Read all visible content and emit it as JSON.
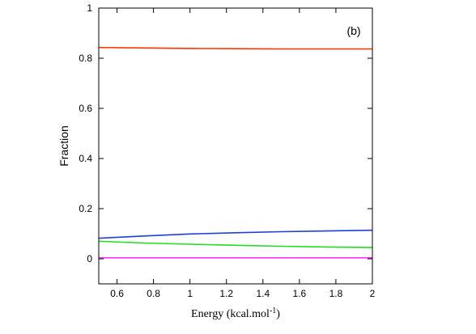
{
  "chart_data": {
    "type": "line",
    "annotation": "(b)",
    "ylabel": "Fraction",
    "xlabel_main": "Energy (kcal.mol",
    "xlabel_sup": "-1",
    "xlabel_close": ")",
    "xlim": [
      0.5,
      2
    ],
    "ylim": [
      -0.1,
      1
    ],
    "x_ticks": [
      0.6,
      0.8,
      1,
      1.2,
      1.4,
      1.6,
      1.8,
      2
    ],
    "x_tick_labels": [
      "0.6",
      "0.8",
      "1",
      "1.2",
      "1.4",
      "1.6",
      "1.8",
      "2"
    ],
    "y_ticks": [
      0,
      0.2,
      0.4,
      0.6,
      0.8,
      1
    ],
    "y_tick_labels": [
      "0",
      "0.2",
      "0.4",
      "0.6",
      "0.8",
      "1"
    ],
    "grid": false,
    "series": [
      {
        "color": "#ff3300",
        "x": [
          0.5,
          0.75,
          1,
          1.25,
          1.5,
          1.75,
          2
        ],
        "y": [
          0.843,
          0.841,
          0.839,
          0.838,
          0.837,
          0.837,
          0.837
        ]
      },
      {
        "color": "#1f3fdc",
        "x": [
          0.5,
          0.75,
          1,
          1.25,
          1.5,
          1.75,
          2
        ],
        "y": [
          0.082,
          0.091,
          0.099,
          0.104,
          0.108,
          0.111,
          0.114
        ]
      },
      {
        "color": "#22dd22",
        "x": [
          0.5,
          0.75,
          1,
          1.25,
          1.5,
          1.75,
          2
        ],
        "y": [
          0.07,
          0.063,
          0.058,
          0.054,
          0.05,
          0.047,
          0.045
        ]
      },
      {
        "color": "#ff33ff",
        "x": [
          0.5,
          0.75,
          1,
          1.25,
          1.5,
          1.75,
          2
        ],
        "y": [
          0.004,
          0.004,
          0.004,
          0.004,
          0.004,
          0.004,
          0.004
        ]
      }
    ]
  }
}
